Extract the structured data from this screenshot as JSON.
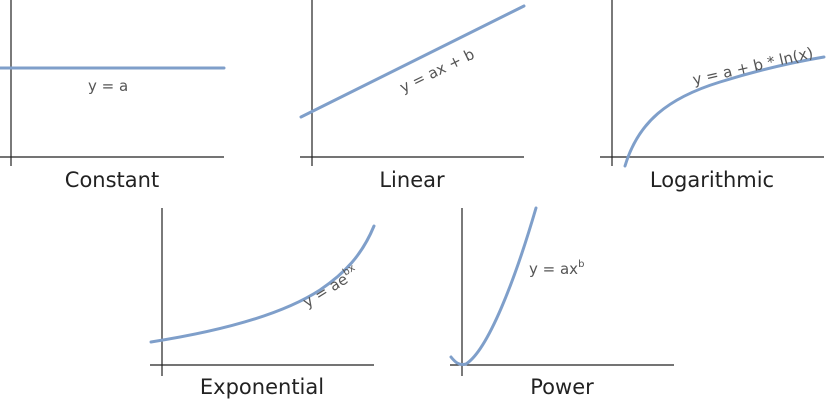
{
  "colors": {
    "curve": "#7f9fca",
    "axis": "#222222",
    "label": "#555555",
    "title": "#222222"
  },
  "panels": [
    {
      "id": "constant",
      "title": "Constant",
      "formula": "y = a",
      "formula_sup": ""
    },
    {
      "id": "linear",
      "title": "Linear",
      "formula": "y = ax + b",
      "formula_sup": ""
    },
    {
      "id": "logarithmic",
      "title": "Logarithmic",
      "formula": "y = a + b * ln(x)",
      "formula_sup": ""
    },
    {
      "id": "exponential",
      "title": "Exponential",
      "formula": "y = ae",
      "formula_sup": "bx"
    },
    {
      "id": "power",
      "title": "Power",
      "formula": "y = ax",
      "formula_sup": "b"
    }
  ]
}
